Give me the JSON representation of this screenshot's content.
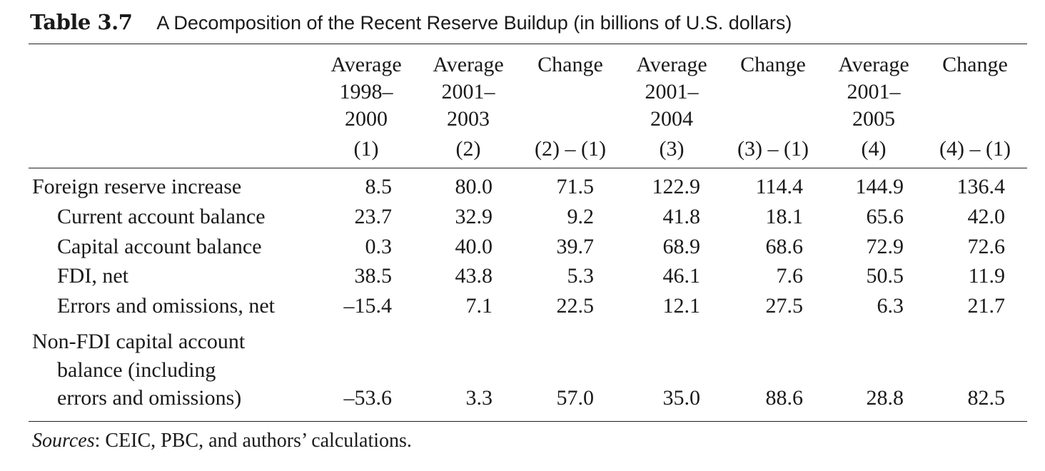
{
  "title": {
    "label": "Table 3.7",
    "text": "A Decomposition of the Recent Reserve Buildup (in billions of U.S. dollars)"
  },
  "columns": [
    {
      "lines": [
        "Average",
        "1998–",
        "2000"
      ],
      "num": "(1)"
    },
    {
      "lines": [
        "Average",
        "2001–",
        "2003"
      ],
      "num": "(2)"
    },
    {
      "lines": [
        "Change",
        "",
        ""
      ],
      "num": "(2) – (1)"
    },
    {
      "lines": [
        "Average",
        "2001–",
        "2004"
      ],
      "num": "(3)"
    },
    {
      "lines": [
        "Change",
        "",
        ""
      ],
      "num": "(3) – (1)"
    },
    {
      "lines": [
        "Average",
        "2001–",
        "2005"
      ],
      "num": "(4)"
    },
    {
      "lines": [
        "Change",
        "",
        ""
      ],
      "num": "(4) – (1)"
    }
  ],
  "rows": [
    {
      "label": [
        "Foreign reserve increase"
      ],
      "values": [
        "8.5",
        "80.0",
        "71.5",
        "122.9",
        "114.4",
        "144.9",
        "136.4"
      ]
    },
    {
      "label": [
        "Current account balance"
      ],
      "values": [
        "23.7",
        "32.9",
        "9.2",
        "41.8",
        "18.1",
        "65.6",
        "42.0"
      ]
    },
    {
      "label": [
        "Capital account balance"
      ],
      "values": [
        "0.3",
        "40.0",
        "39.7",
        "68.9",
        "68.6",
        "72.9",
        "72.6"
      ]
    },
    {
      "label": [
        "FDI, net"
      ],
      "values": [
        "38.5",
        "43.8",
        "5.3",
        "46.1",
        "7.6",
        "50.5",
        "11.9"
      ]
    },
    {
      "label": [
        "Errors and omissions, net"
      ],
      "values": [
        "–15.4",
        "7.1",
        "22.5",
        "12.1",
        "27.5",
        "6.3",
        "21.7"
      ]
    },
    {
      "label": [
        "Non-FDI capital account",
        "balance (including",
        "errors and omissions)"
      ],
      "values": [
        "–53.6",
        "3.3",
        "57.0",
        "35.0",
        "88.6",
        "28.8",
        "82.5"
      ]
    }
  ],
  "source": {
    "label": "Sources",
    "text": ": CEIC, PBC, and authors’ calculations."
  }
}
